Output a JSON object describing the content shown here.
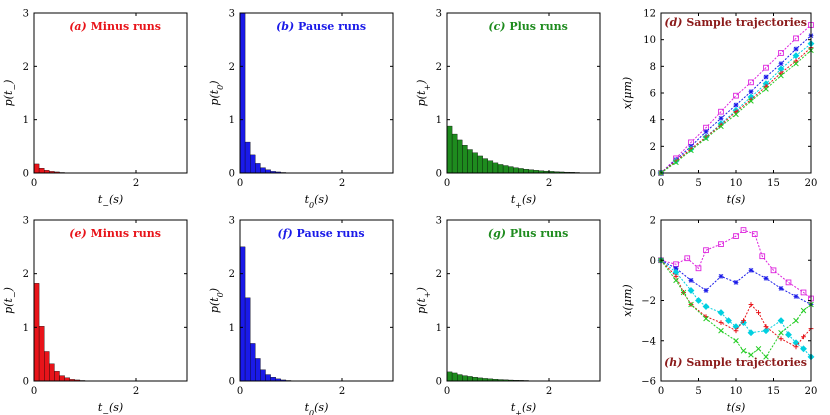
{
  "chart_data": [
    {
      "type": "bar",
      "title": "(a) Minus runs",
      "title_color": "#e8141a",
      "xlabel": "t_-(s)",
      "ylabel": "p(t_-)",
      "xlim": [
        0,
        3
      ],
      "ylim": [
        0,
        3
      ],
      "xticks": [
        0,
        2
      ],
      "yticks": [
        0,
        1,
        2,
        3
      ],
      "bin_width": 0.1,
      "bar_color": "#e8141a",
      "values": [
        0.17,
        0.09,
        0.05,
        0.03,
        0.02,
        0.01,
        0.005,
        0.003
      ]
    },
    {
      "type": "bar",
      "title": "(b) Pause runs",
      "title_color": "#1a1ae8",
      "xlabel": "t_0(s)",
      "ylabel": "p(t_0)",
      "xlim": [
        0,
        3
      ],
      "ylim": [
        0,
        3
      ],
      "xticks": [
        0,
        2
      ],
      "yticks": [
        0,
        1,
        2,
        3
      ],
      "bin_width": 0.1,
      "bar_color": "#1a1ae8",
      "values": [
        3.0,
        0.58,
        0.34,
        0.18,
        0.1,
        0.06,
        0.03,
        0.02,
        0.01,
        0.005
      ]
    },
    {
      "type": "bar",
      "title": "(c) Plus runs",
      "title_color": "#1e8b1e",
      "xlabel": "t_+(s)",
      "ylabel": "p(t_+)",
      "xlim": [
        0,
        3
      ],
      "ylim": [
        0,
        3
      ],
      "xticks": [
        0,
        2
      ],
      "yticks": [
        0,
        1,
        2,
        3
      ],
      "bin_width": 0.1,
      "bar_color": "#1e8b1e",
      "values": [
        0.88,
        0.73,
        0.62,
        0.52,
        0.44,
        0.38,
        0.32,
        0.27,
        0.23,
        0.19,
        0.16,
        0.14,
        0.12,
        0.1,
        0.085,
        0.07,
        0.06,
        0.05,
        0.042,
        0.035,
        0.03,
        0.025,
        0.02,
        0.016,
        0.013,
        0.01
      ]
    },
    {
      "type": "line",
      "title": "(d) Sample trajectories",
      "title_color": "#8b1a1a",
      "xlabel": "t(s)",
      "ylabel": "x(μm)",
      "xlim": [
        0,
        20
      ],
      "ylim": [
        0,
        12
      ],
      "xticks": [
        0,
        5,
        10,
        15,
        20
      ],
      "yticks": [
        0,
        2,
        4,
        6,
        8,
        10,
        12
      ],
      "series": [
        {
          "color": "#dd22dd",
          "marker": "square",
          "x": [
            0,
            2,
            4,
            6,
            8,
            10,
            12,
            14,
            16,
            18,
            20
          ],
          "y": [
            0,
            1.1,
            2.3,
            3.4,
            4.6,
            5.8,
            6.8,
            7.9,
            9.0,
            10.1,
            11.1
          ]
        },
        {
          "color": "#1a1ae8",
          "marker": "cross",
          "x": [
            0,
            2,
            4,
            6,
            8,
            10,
            12,
            14,
            16,
            18,
            20
          ],
          "y": [
            0,
            1.0,
            2.0,
            3.1,
            4.1,
            5.1,
            6.1,
            7.2,
            8.2,
            9.3,
            10.3
          ]
        },
        {
          "color": "#00d0e0",
          "marker": "diamond",
          "x": [
            0,
            2,
            4,
            6,
            8,
            10,
            12,
            14,
            16,
            18,
            20
          ],
          "y": [
            0,
            0.9,
            1.8,
            2.7,
            3.7,
            4.7,
            5.7,
            6.7,
            7.8,
            8.8,
            9.7
          ]
        },
        {
          "color": "#e8141a",
          "marker": "plus",
          "x": [
            0,
            2,
            4,
            6,
            8,
            10,
            12,
            14,
            16,
            18,
            20
          ],
          "y": [
            0,
            0.9,
            1.8,
            2.7,
            3.6,
            4.6,
            5.5,
            6.5,
            7.5,
            8.4,
            9.4
          ]
        },
        {
          "color": "#22cc22",
          "marker": "x",
          "x": [
            0,
            2,
            4,
            6,
            8,
            10,
            12,
            14,
            16,
            18,
            20
          ],
          "y": [
            0,
            0.8,
            1.7,
            2.6,
            3.5,
            4.4,
            5.4,
            6.3,
            7.3,
            8.2,
            9.2
          ]
        }
      ]
    },
    {
      "type": "bar",
      "title": "(e) Minus runs",
      "title_color": "#e8141a",
      "xlabel": "t_-(s)",
      "ylabel": "p(t_-)",
      "xlim": [
        0,
        3
      ],
      "ylim": [
        0,
        3
      ],
      "xticks": [
        0,
        2
      ],
      "yticks": [
        0,
        1,
        2,
        3
      ],
      "bin_width": 0.1,
      "bar_color": "#e8141a",
      "values": [
        1.82,
        1.02,
        0.55,
        0.32,
        0.18,
        0.1,
        0.06,
        0.03,
        0.02,
        0.01
      ]
    },
    {
      "type": "bar",
      "title": "(f) Pause runs",
      "title_color": "#1a1ae8",
      "xlabel": "t_0(s)",
      "ylabel": "p(t_0)",
      "xlim": [
        0,
        3
      ],
      "ylim": [
        0,
        3
      ],
      "xticks": [
        0,
        2
      ],
      "yticks": [
        0,
        1,
        2,
        3
      ],
      "bin_width": 0.1,
      "bar_color": "#1a1ae8",
      "values": [
        2.5,
        1.55,
        0.7,
        0.42,
        0.21,
        0.12,
        0.07,
        0.04,
        0.02,
        0.01
      ]
    },
    {
      "type": "bar",
      "title": "(g) Plus runs",
      "title_color": "#1e8b1e",
      "xlabel": "t_+(s)",
      "ylabel": "p(t_+)",
      "xlim": [
        0,
        3
      ],
      "ylim": [
        0,
        3
      ],
      "xticks": [
        0,
        2
      ],
      "yticks": [
        0,
        1,
        2,
        3
      ],
      "bin_width": 0.1,
      "bar_color": "#1e8b1e",
      "values": [
        0.17,
        0.15,
        0.12,
        0.1,
        0.085,
        0.07,
        0.058,
        0.048,
        0.04,
        0.033,
        0.027,
        0.022,
        0.018,
        0.015,
        0.012,
        0.01
      ]
    },
    {
      "type": "line",
      "title": "(h) Sample trajectories",
      "title_color": "#8b1a1a",
      "xlabel": "t(s)",
      "ylabel": "x(μm)",
      "xlim": [
        0,
        20
      ],
      "ylim": [
        -6,
        2
      ],
      "xticks": [
        0,
        5,
        10,
        15,
        20
      ],
      "yticks": [
        -6,
        -4,
        -2,
        0,
        2
      ],
      "series": [
        {
          "color": "#dd22dd",
          "marker": "square",
          "x": [
            0,
            2,
            3.5,
            5,
            6,
            8,
            10,
            11,
            12.5,
            13.5,
            15,
            17,
            19,
            20
          ],
          "y": [
            0,
            -0.2,
            0.1,
            -0.4,
            0.5,
            0.8,
            1.2,
            1.5,
            1.3,
            0.2,
            -0.5,
            -1.1,
            -1.6,
            -1.9
          ]
        },
        {
          "color": "#1a1ae8",
          "marker": "cross",
          "x": [
            0,
            2,
            4,
            6,
            8,
            10,
            12,
            14,
            16,
            18,
            20
          ],
          "y": [
            0,
            -0.4,
            -1.0,
            -1.5,
            -0.8,
            -1.1,
            -0.5,
            -0.9,
            -1.4,
            -1.8,
            -2.2
          ]
        },
        {
          "color": "#00d0e0",
          "marker": "diamond",
          "x": [
            0,
            2,
            4,
            5,
            6,
            8,
            9,
            10,
            11,
            12,
            14,
            16,
            17,
            18,
            19,
            20
          ],
          "y": [
            0,
            -0.6,
            -1.5,
            -2.0,
            -2.3,
            -2.6,
            -3.0,
            -3.3,
            -3.1,
            -3.6,
            -3.5,
            -3.0,
            -3.7,
            -4.1,
            -4.4,
            -4.8
          ]
        },
        {
          "color": "#e8141a",
          "marker": "plus",
          "x": [
            0,
            2,
            3,
            4,
            6,
            8,
            10,
            11,
            12,
            13,
            14,
            16,
            18,
            19,
            20
          ],
          "y": [
            0,
            -0.8,
            -1.6,
            -2.2,
            -2.8,
            -3.1,
            -3.5,
            -3.0,
            -2.2,
            -2.6,
            -3.3,
            -3.9,
            -4.3,
            -3.8,
            -3.4
          ]
        },
        {
          "color": "#22cc22",
          "marker": "x",
          "x": [
            0,
            2,
            3,
            4,
            6,
            8,
            10,
            11,
            12,
            13,
            14,
            16,
            18,
            19,
            20
          ],
          "y": [
            0,
            -1.0,
            -1.6,
            -2.2,
            -2.9,
            -3.5,
            -4.0,
            -4.5,
            -4.7,
            -4.4,
            -4.8,
            -3.6,
            -3.0,
            -2.5,
            -2.2
          ]
        }
      ]
    }
  ]
}
